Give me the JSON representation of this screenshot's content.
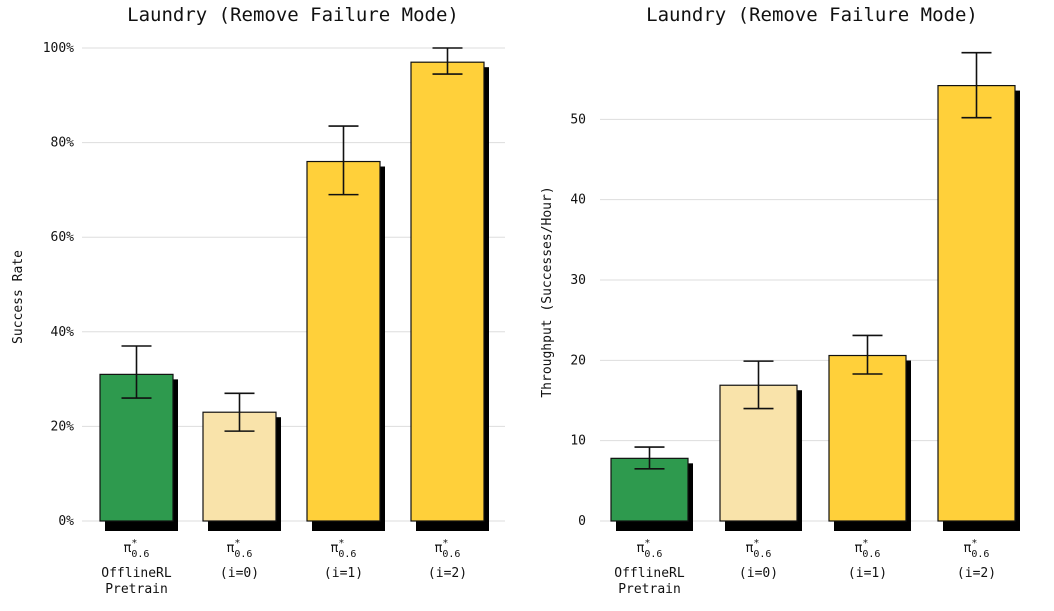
{
  "colors": {
    "pretrain": "#2e9a4e",
    "iter0": "#f9e3aa",
    "iter_rl": "#ffd03a"
  },
  "chart_data": [
    {
      "type": "bar",
      "title": "Laundry (Remove Failure Mode)",
      "xlabel": "",
      "ylabel": "Success Rate",
      "ylim": [
        0,
        100
      ],
      "yticks": [
        "0%",
        "20%",
        "40%",
        "60%",
        "80%",
        "100%"
      ],
      "categories": [
        {
          "symbol": "π",
          "sup": "*",
          "sub": "0.6",
          "lines": [
            "OfflineRL",
            "Pretrain"
          ],
          "color_key": "pretrain"
        },
        {
          "symbol": "π",
          "sup": "*",
          "sub": "0.6",
          "lines": [
            "(i=0)"
          ],
          "color_key": "iter0"
        },
        {
          "symbol": "π",
          "sup": "*",
          "sub": "0.6",
          "lines": [
            "(i=1)"
          ],
          "color_key": "iter_rl"
        },
        {
          "symbol": "π",
          "sup": "*",
          "sub": "0.6",
          "lines": [
            "(i=2)"
          ],
          "color_key": "iter_rl"
        }
      ],
      "values": [
        31,
        23,
        76,
        97
      ],
      "err_low": [
        26,
        19,
        69,
        94.5
      ],
      "err_high": [
        37,
        27,
        83.5,
        100
      ],
      "grid": true
    },
    {
      "type": "bar",
      "title": "Laundry (Remove Failure Mode)",
      "xlabel": "",
      "ylabel": "Throughput (Successes/Hour)",
      "ylim": [
        0,
        60
      ],
      "yticks": [
        "0",
        "10",
        "20",
        "30",
        "40",
        "50"
      ],
      "categories": [
        {
          "symbol": "π",
          "sup": "*",
          "sub": "0.6",
          "lines": [
            "OfflineRL",
            "Pretrain"
          ],
          "color_key": "pretrain"
        },
        {
          "symbol": "π",
          "sup": "*",
          "sub": "0.6",
          "lines": [
            "(i=0)"
          ],
          "color_key": "iter0"
        },
        {
          "symbol": "π",
          "sup": "*",
          "sub": "0.6",
          "lines": [
            "(i=1)"
          ],
          "color_key": "iter_rl"
        },
        {
          "symbol": "π",
          "sup": "*",
          "sub": "0.6",
          "lines": [
            "(i=2)"
          ],
          "color_key": "iter_rl"
        }
      ],
      "values": [
        7.8,
        16.9,
        20.6,
        54.2
      ],
      "err_low": [
        6.5,
        14,
        18.3,
        50.2
      ],
      "err_high": [
        9.2,
        19.9,
        23.1,
        58.3
      ],
      "grid": true
    }
  ]
}
